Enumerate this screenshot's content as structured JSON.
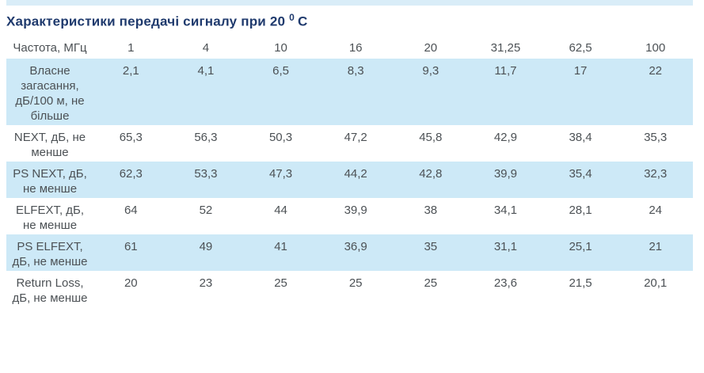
{
  "page": {
    "title_prefix": "Характеристики передачі сигналу при 20",
    "title_sup": "0",
    "title_suffix": "С"
  },
  "colors": {
    "title_text": "#1f3a6d",
    "body_text": "#4c5155",
    "row_stripe": "#cde9f7",
    "top_stripe": "#d9edf8"
  },
  "table": {
    "first_column_header": "Частота, МГц",
    "frequencies_mhz": [
      "1",
      "4",
      "10",
      "16",
      "20",
      "31,25",
      "62,5",
      "100"
    ],
    "rows": [
      {
        "label": "Власне загасання, дБ/100 м, не більше",
        "values": [
          "2,1",
          "4,1",
          "6,5",
          "8,3",
          "9,3",
          "11,7",
          "17",
          "22"
        ]
      },
      {
        "label": "NEXT, дБ, не менше",
        "values": [
          "65,3",
          "56,3",
          "50,3",
          "47,2",
          "45,8",
          "42,9",
          "38,4",
          "35,3"
        ]
      },
      {
        "label": "PS NEXT, дБ, не менше",
        "values": [
          "62,3",
          "53,3",
          "47,3",
          "44,2",
          "42,8",
          "39,9",
          "35,4",
          "32,3"
        ]
      },
      {
        "label": "ELFEXT, дБ, не менше",
        "values": [
          "64",
          "52",
          "44",
          "39,9",
          "38",
          "34,1",
          "28,1",
          "24"
        ]
      },
      {
        "label": "PS ELFEXT, дБ, не менше",
        "values": [
          "61",
          "49",
          "41",
          "36,9",
          "35",
          "31,1",
          "25,1",
          "21"
        ]
      },
      {
        "label": "Return Loss, дБ, не менше",
        "values": [
          "20",
          "23",
          "25",
          "25",
          "25",
          "23,6",
          "21,5",
          "20,1"
        ]
      }
    ]
  }
}
